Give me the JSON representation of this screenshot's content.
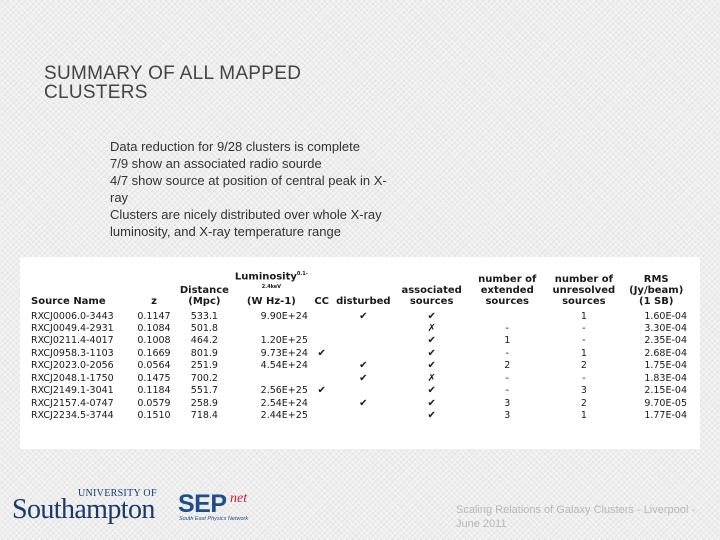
{
  "slide": {
    "title": "SUMMARY OF ALL MAPPED CLUSTERS",
    "bullets": [
      "Data reduction for 9/28 clusters is complete",
      "7/9 show an associated radio sourde",
      "4/7 show source at position of central peak in X-ray",
      "Clusters are nicely distributed over whole X-ray luminosity, and X-ray temperature range"
    ],
    "footer": "Scaling Relations of Galaxy Clusters - Liverpool - June 2011"
  },
  "table": {
    "headers": {
      "source_name": "Source Name",
      "z": "z",
      "distance": "Distance (Mpc)",
      "luminosity": "Luminosity",
      "luminosity_sup": "0.1-2.4keV",
      "luminosity_unit": "(W Hz-1)",
      "cc": "CC",
      "disturbed": "disturbed",
      "associated": "associated sources",
      "extended": "number of extended sources",
      "unresolved": "number of unresolved sources",
      "rms": "RMS (Jy/beam) (1 SB)"
    },
    "rows": [
      {
        "name": "RXCJ0006.0-3443",
        "z": "0.1147",
        "distance": "533.1",
        "lum": "9.90E+24",
        "cc": "",
        "disturbed": "✔",
        "assoc": "✔",
        "ext": "",
        "unres": "1",
        "rms": "1.60E-04"
      },
      {
        "name": "RXCJ0049.4-2931",
        "z": "0.1084",
        "distance": "501.8",
        "lum": "",
        "cc": "",
        "disturbed": "",
        "assoc": "✗",
        "ext": "-",
        "unres": "-",
        "rms": "3.30E-04"
      },
      {
        "name": "RXCJ0211.4-4017",
        "z": "0.1008",
        "distance": "464.2",
        "lum": "1.20E+25",
        "cc": "",
        "disturbed": "",
        "assoc": "✔",
        "ext": "1",
        "unres": "-",
        "rms": "2.35E-04"
      },
      {
        "name": "RXCJ0958.3-1103",
        "z": "0.1669",
        "distance": "801.9",
        "lum": "9.73E+24",
        "cc": "✔",
        "disturbed": "",
        "assoc": "✔",
        "ext": "-",
        "unres": "1",
        "rms": "2.68E-04"
      },
      {
        "name": "RXCJ2023.0-2056",
        "z": "0.0564",
        "distance": "251.9",
        "lum": "4.54E+24",
        "cc": "",
        "disturbed": "✔",
        "assoc": "✔",
        "ext": "2",
        "unres": "2",
        "rms": "1.75E-04"
      },
      {
        "name": "RXCJ2048.1-1750",
        "z": "0.1475",
        "distance": "700.2",
        "lum": "",
        "cc": "",
        "disturbed": "✔",
        "assoc": "✗",
        "ext": "-",
        "unres": "-",
        "rms": "1.83E-04"
      },
      {
        "name": "RXCJ2149.1-3041",
        "z": "0.1184",
        "distance": "551.7",
        "lum": "2.56E+25",
        "cc": "✔",
        "disturbed": "",
        "assoc": "✔",
        "ext": "-",
        "unres": "3",
        "rms": "2.15E-04"
      },
      {
        "name": "RXCJ2157.4-0747",
        "z": "0.0579",
        "distance": "258.9",
        "lum": "2.54E+24",
        "cc": "",
        "disturbed": "✔",
        "assoc": "✔",
        "ext": "3",
        "unres": "2",
        "rms": "9.70E-05"
      },
      {
        "name": "RXCJ2234.5-3744",
        "z": "0.1510",
        "distance": "718.4",
        "lum": "2.44E+25",
        "cc": "",
        "disturbed": "",
        "assoc": "✔",
        "ext": "3",
        "unres": "1",
        "rms": "1.77E-04"
      }
    ]
  },
  "logos": {
    "southampton_top": "UNIVERSITY OF",
    "southampton_main": "Southampton",
    "sepnet_word": "SEP",
    "sepnet_net": "net",
    "sepnet_sub": "South East Physics Network"
  },
  "colors": {
    "background": "#eeeeee",
    "title": "#444444",
    "footer": "#b8b8b8",
    "southampton": "#1b3a6b",
    "sepnet_blue": "#1f4e8a",
    "sepnet_red": "#d01f2d"
  }
}
